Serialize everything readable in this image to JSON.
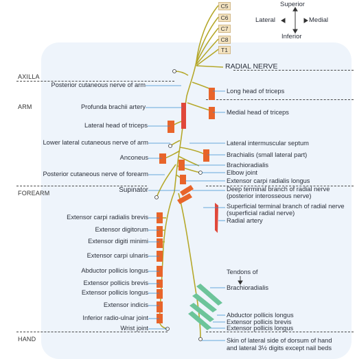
{
  "orientation": {
    "superior": "Superior",
    "inferior": "Inferior",
    "lateral": "Lateral",
    "medial": "Medial"
  },
  "roots": [
    "C5",
    "C6",
    "C7",
    "C8",
    "T1"
  ],
  "regions": {
    "axilla": "AXILLA",
    "arm": "ARM",
    "forearm": "FOREARM",
    "hand": "HAND"
  },
  "radial_nerve": "RADIAL NERVE",
  "left_labels": [
    "Posterior cutaneous nerve of arm",
    "Profunda brachii artery",
    "Lateral head of triceps",
    "Lower lateral cutaneous nerve of arm",
    "Anconeus",
    "Posterior cutaneous nerve of forearm",
    "Supinator",
    "Extensor carpi radialis brevis",
    "Extensor digitorum",
    "Extensor digiti minimi",
    "Extensor carpi ulnaris",
    "Abductor pollicis longus",
    "Extensor pollicis brevis",
    "Extensor pollicis longus",
    "Extensor indicis",
    "Inferior radio-ulnar joint",
    "Wrist joint"
  ],
  "right_labels": [
    "Long head of triceps",
    "Medial head of triceps",
    "Lateral intermuscular septum",
    "Brachialis (small lateral part)",
    "Brachioradialis",
    "Elbow joint",
    "Extensor carpi radialis longus",
    "Deep terminal branch of radial nerve",
    "(posterior interosseous nerve)",
    "Superficial terminal branch of radial nerve",
    "(superficial radial nerve)",
    "Radial artery",
    "Tendons of",
    "Brachioradialis",
    "Abductor pollicis longus",
    "Extensor pollicis brevis",
    "Extensor pollicis longus",
    "Skin of lateral side of dorsum of hand",
    "and lateral 3½ digits except nail beds"
  ],
  "colors": {
    "nerve": "#b5a82a",
    "muscle": "#e8642a",
    "artery": "#e0483a",
    "tendon": "#6cc49a",
    "region_bg": "#eef4fb",
    "leader": "#3a8fd0"
  }
}
